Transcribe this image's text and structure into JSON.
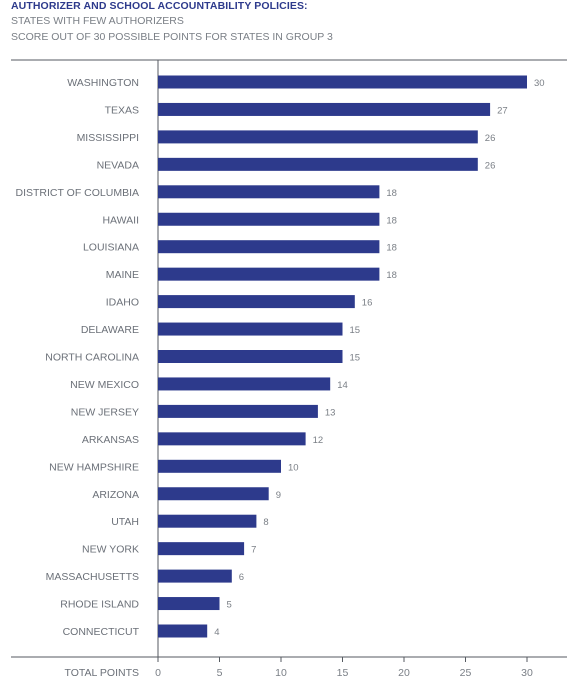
{
  "header": {
    "title": "AUTHORIZER AND SCHOOL ACCOUNTABILITY POLICIES:",
    "subtitle1": "STATES WITH FEW AUTHORIZERS",
    "subtitle2": "SCORE OUT OF 30 POSSIBLE POINTS FOR STATES IN GROUP 3"
  },
  "chart_data": {
    "type": "bar",
    "orientation": "horizontal",
    "title": "AUTHORIZER AND SCHOOL ACCOUNTABILITY POLICIES:",
    "subtitle": "STATES WITH FEW AUTHORIZERS / SCORE OUT OF 30 POSSIBLE POINTS FOR STATES IN GROUP 3",
    "xlabel": "TOTAL POINTS",
    "ylabel": "",
    "xlim": [
      0,
      30
    ],
    "xticks": [
      0,
      5,
      10,
      15,
      20,
      25,
      30
    ],
    "grid": false,
    "bar_color": "#2d3a8c",
    "categories": [
      "WASHINGTON",
      "TEXAS",
      "MISSISSIPPI",
      "NEVADA",
      "DISTRICT OF COLUMBIA",
      "HAWAII",
      "LOUISIANA",
      "MAINE",
      "IDAHO",
      "DELAWARE",
      "NORTH CAROLINA",
      "NEW MEXICO",
      "NEW JERSEY",
      "ARKANSAS",
      "NEW HAMPSHIRE",
      "ARIZONA",
      "UTAH",
      "NEW YORK",
      "MASSACHUSETTS",
      "RHODE ISLAND",
      "CONNECTICUT"
    ],
    "values": [
      30,
      27,
      26,
      26,
      18,
      18,
      18,
      18,
      16,
      15,
      15,
      14,
      13,
      12,
      10,
      9,
      8,
      7,
      6,
      5,
      4
    ]
  }
}
